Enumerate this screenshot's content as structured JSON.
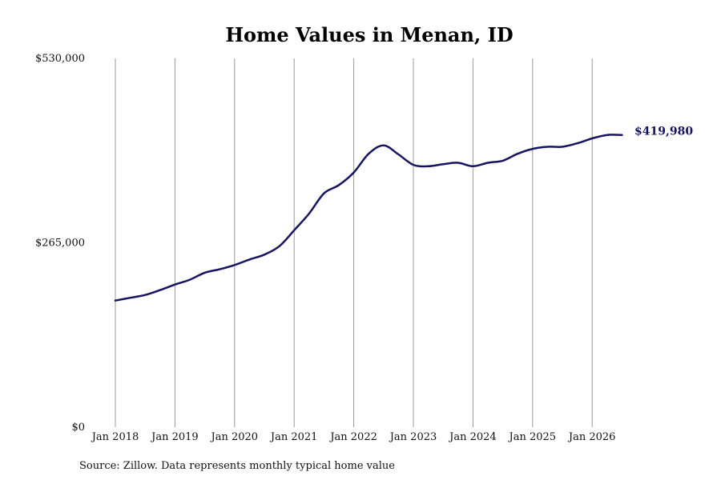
{
  "chart_data": {
    "type": "line",
    "title": "Home Values in Menan, ID",
    "source": "Source: Zillow. Data represents monthly typical home value",
    "xlabel": "",
    "ylabel": "",
    "ylim": [
      0,
      530000
    ],
    "y_ticks": [
      {
        "value": 0,
        "label": "$0"
      },
      {
        "value": 265000,
        "label": "$265,000"
      },
      {
        "value": 530000,
        "label": "$530,000"
      }
    ],
    "x_ticks": [
      {
        "value": 2018,
        "label": "Jan 2018"
      },
      {
        "value": 2019,
        "label": "Jan 2019"
      },
      {
        "value": 2020,
        "label": "Jan 2020"
      },
      {
        "value": 2021,
        "label": "Jan 2021"
      },
      {
        "value": 2022,
        "label": "Jan 2022"
      },
      {
        "value": 2023,
        "label": "Jan 2023"
      },
      {
        "value": 2024,
        "label": "Jan 2024"
      },
      {
        "value": 2025,
        "label": "Jan 2025"
      },
      {
        "value": 2026,
        "label": "Jan 2026"
      }
    ],
    "grid": {
      "vertical": true,
      "horizontal": false
    },
    "line_color": "#161460",
    "grid_color": "#9a9a9a",
    "end_label": "$419,980",
    "series": [
      {
        "values": [
          {
            "x": "2018-01",
            "y": 182000
          },
          {
            "x": "2018-04",
            "y": 186000
          },
          {
            "x": "2018-07",
            "y": 190000
          },
          {
            "x": "2018-10",
            "y": 197000
          },
          {
            "x": "2019-01",
            "y": 205000
          },
          {
            "x": "2019-04",
            "y": 212000
          },
          {
            "x": "2019-07",
            "y": 222000
          },
          {
            "x": "2019-10",
            "y": 227000
          },
          {
            "x": "2020-01",
            "y": 233000
          },
          {
            "x": "2020-04",
            "y": 241000
          },
          {
            "x": "2020-07",
            "y": 248000
          },
          {
            "x": "2020-10",
            "y": 260000
          },
          {
            "x": "2021-01",
            "y": 283000
          },
          {
            "x": "2021-04",
            "y": 307000
          },
          {
            "x": "2021-07",
            "y": 336000
          },
          {
            "x": "2021-10",
            "y": 348000
          },
          {
            "x": "2022-01",
            "y": 366000
          },
          {
            "x": "2022-04",
            "y": 393000
          },
          {
            "x": "2022-07",
            "y": 405000
          },
          {
            "x": "2022-10",
            "y": 392000
          },
          {
            "x": "2023-01",
            "y": 377000
          },
          {
            "x": "2023-04",
            "y": 375000
          },
          {
            "x": "2023-07",
            "y": 378000
          },
          {
            "x": "2023-10",
            "y": 380000
          },
          {
            "x": "2024-01",
            "y": 375000
          },
          {
            "x": "2024-04",
            "y": 380000
          },
          {
            "x": "2024-07",
            "y": 383000
          },
          {
            "x": "2024-10",
            "y": 393000
          },
          {
            "x": "2025-01",
            "y": 400000
          },
          {
            "x": "2025-04",
            "y": 403000
          },
          {
            "x": "2025-07",
            "y": 403000
          },
          {
            "x": "2025-10",
            "y": 408000
          },
          {
            "x": "2026-01",
            "y": 415000
          },
          {
            "x": "2026-04",
            "y": 420000
          },
          {
            "x": "2026-07",
            "y": 419980
          }
        ]
      }
    ]
  }
}
